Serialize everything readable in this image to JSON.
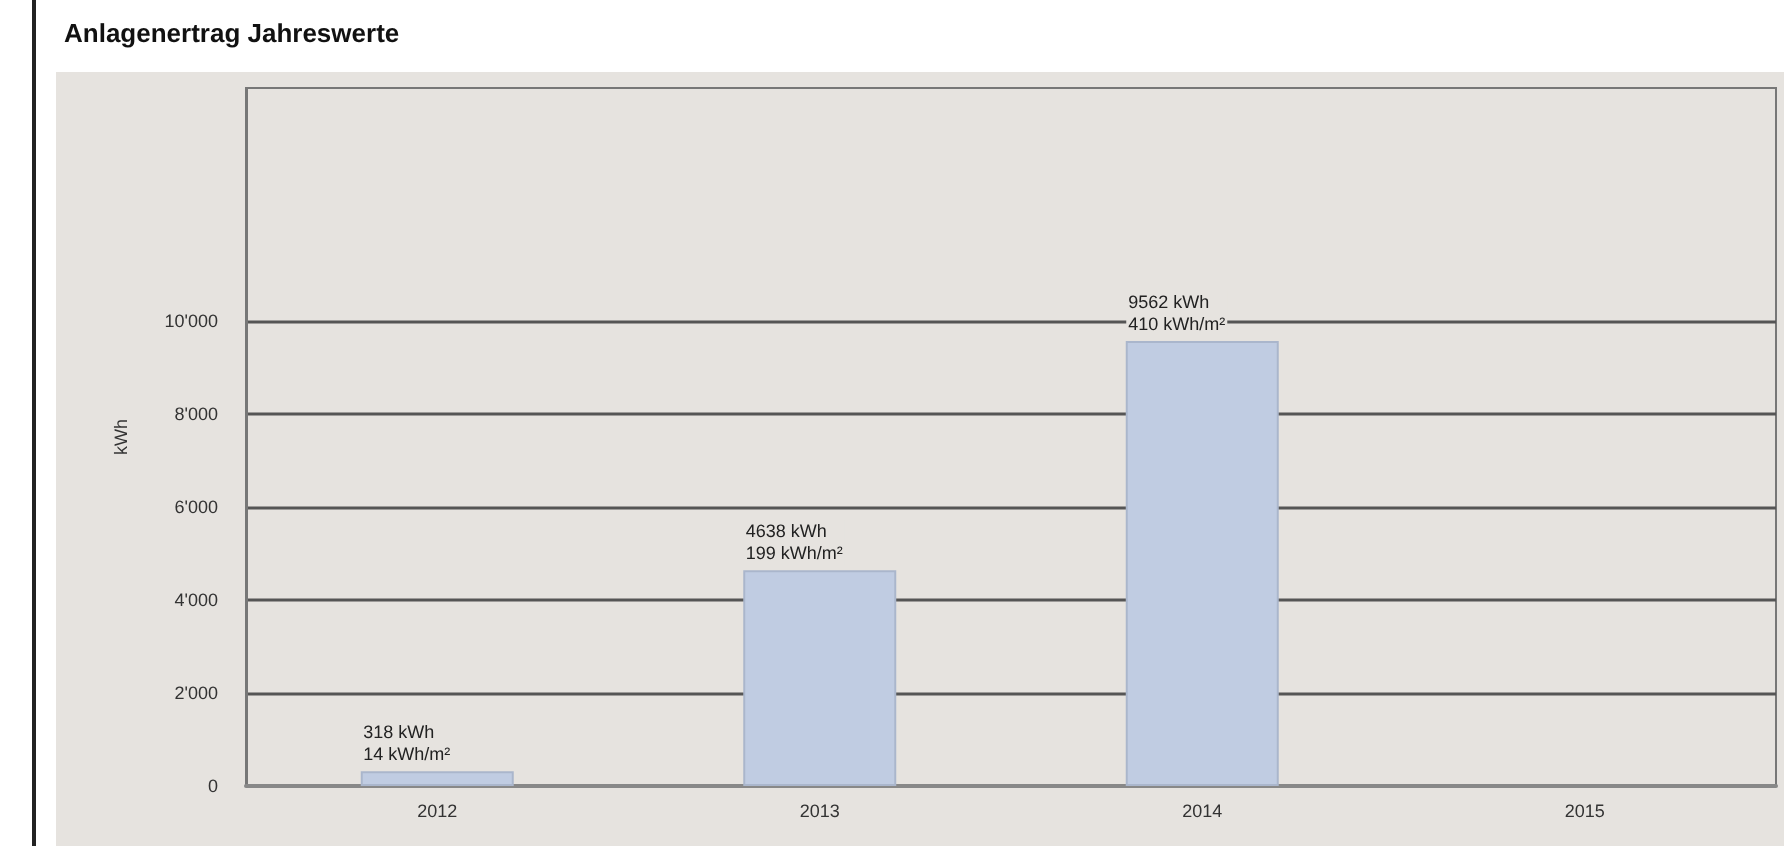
{
  "chart_data": {
    "type": "bar",
    "title": "Anlagenertrag Jahreswerte",
    "ylabel": "kWh",
    "categories": [
      "2012",
      "2013",
      "2014",
      "2015"
    ],
    "values": [
      318,
      4638,
      9562,
      null
    ],
    "value_labels": [
      "318 kWh\n14 kWh/m²",
      "4638 kWh\n199 kWh/m²",
      "9562 kWh\n410 kWh/m²",
      null
    ],
    "color": "#c0cce2",
    "ylim": [
      0,
      15000
    ],
    "yticks": [
      {
        "value": 0,
        "label": "0"
      },
      {
        "value": 2000,
        "label": "2'000"
      },
      {
        "value": 4000,
        "label": "4'000"
      },
      {
        "value": 6000,
        "label": "6'000"
      },
      {
        "value": 8000,
        "label": "8'000"
      },
      {
        "value": 10000,
        "label": "10'000"
      }
    ],
    "grid": "y"
  }
}
